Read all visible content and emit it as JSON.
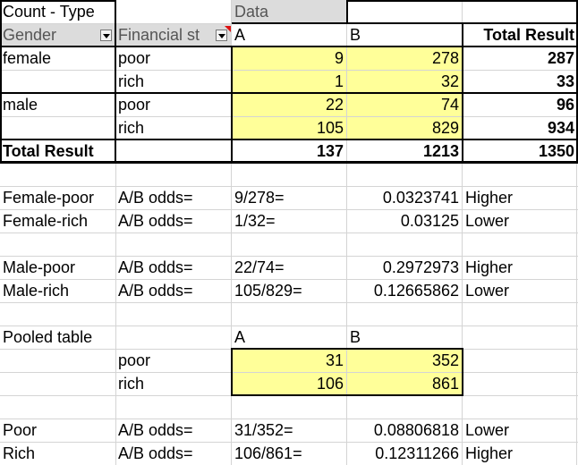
{
  "pivot": {
    "corner_label": "Count - Type",
    "data_label": "Data",
    "row_field_1": "Gender",
    "row_field_2": "Financial st",
    "col_a": "A",
    "col_b": "B",
    "total_label": "Total Result",
    "rows": [
      {
        "gender": "female",
        "status": "poor",
        "a": "9",
        "b": "278",
        "total": "287"
      },
      {
        "gender": "",
        "status": "rich",
        "a": "1",
        "b": "32",
        "total": "33"
      },
      {
        "gender": "male",
        "status": "poor",
        "a": "22",
        "b": "74",
        "total": "96"
      },
      {
        "gender": "",
        "status": "rich",
        "a": "105",
        "b": "829",
        "total": "934"
      }
    ],
    "total_row": {
      "label": "Total Result",
      "a": "137",
      "b": "1213",
      "total": "1350"
    }
  },
  "odds_female": [
    {
      "label": "Female-poor",
      "odds_label": "A/B odds=",
      "fraction": "9/278=",
      "value": "0.0323741",
      "verdict": "Higher"
    },
    {
      "label": "Female-rich",
      "odds_label": "A/B odds=",
      "fraction": "1/32=",
      "value": "0.03125",
      "verdict": "Lower"
    }
  ],
  "odds_male": [
    {
      "label": "Male-poor",
      "odds_label": "A/B odds=",
      "fraction": "22/74=",
      "value": "0.2972973",
      "verdict": "Higher"
    },
    {
      "label": "Male-rich",
      "odds_label": "A/B odds=",
      "fraction": "105/829=",
      "value": "0.12665862",
      "verdict": "Lower"
    }
  ],
  "pooled": {
    "title": "Pooled table",
    "col_a": "A",
    "col_b": "B",
    "rows": [
      {
        "status": "poor",
        "a": "31",
        "b": "352"
      },
      {
        "status": "rich",
        "a": "106",
        "b": "861"
      }
    ]
  },
  "odds_pooled": [
    {
      "label": "Poor",
      "odds_label": "A/B odds=",
      "fraction": "31/352=",
      "value": "0.08806818",
      "verdict": "Lower"
    },
    {
      "label": "Rich",
      "odds_label": "A/B odds=",
      "fraction": "106/861=",
      "value": "0.12311266",
      "verdict": "Higher"
    }
  ],
  "colors": {
    "highlight": "#ffff99",
    "header_bg": "#dcdcdc",
    "grid": "#d4d4d4",
    "filter_marker": "#dd1111"
  },
  "icons": [
    "dropdown-arrow-icon",
    "filter-active-marker-icon"
  ]
}
